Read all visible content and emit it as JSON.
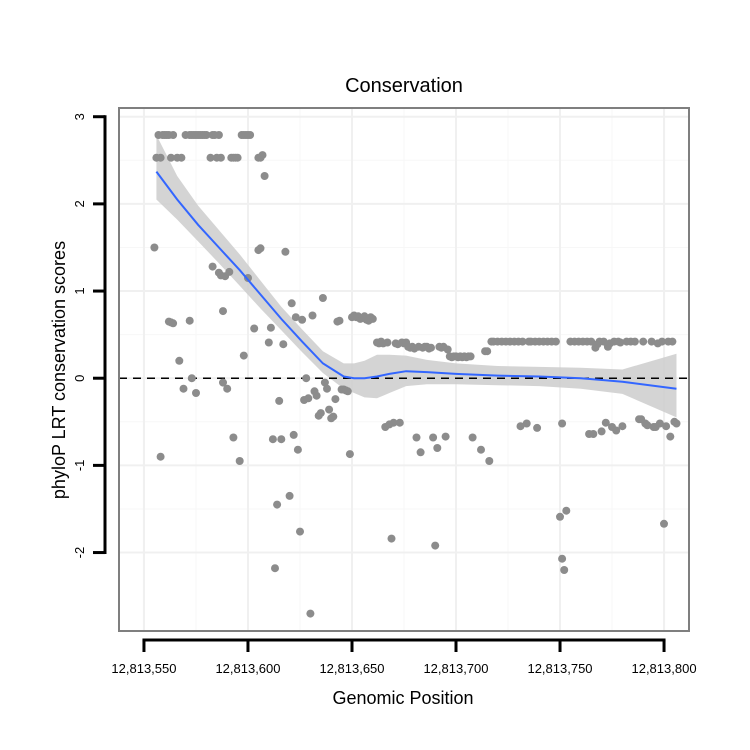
{
  "chart_data": {
    "type": "scatter",
    "title": "Conservation",
    "xlabel": "Genomic Position",
    "ylabel": "phyloP LRT conservation scores",
    "xlim": [
      12813538,
      12813812
    ],
    "ylim": [
      -2.9,
      3.1
    ],
    "x_ticks": [
      12813550,
      12813600,
      12813650,
      12813700,
      12813750,
      12813800
    ],
    "x_tick_labels": [
      "12,813,550",
      "12,813,600",
      "12,813,650",
      "12,813,700",
      "12,813,750",
      "12,813,800"
    ],
    "y_ticks": [
      -2,
      -1,
      0,
      1,
      2,
      3
    ],
    "y_tick_labels": [
      "-2",
      "-1",
      "0",
      "1",
      "2",
      "3"
    ],
    "reference_line": {
      "y": 0,
      "style": "dashed",
      "color": "#000000"
    },
    "point_color": "#8c8c8c",
    "smooth_color": "#3366ff",
    "band_color": "#cccccc",
    "points": [
      [
        12813556,
        2.53
      ],
      [
        12813557,
        2.79
      ],
      [
        12813558,
        2.53
      ],
      [
        12813559,
        2.79
      ],
      [
        12813560,
        2.79
      ],
      [
        12813561,
        2.79
      ],
      [
        12813562,
        2.79
      ],
      [
        12813563,
        2.53
      ],
      [
        12813564,
        2.79
      ],
      [
        12813566,
        2.53
      ],
      [
        12813568,
        2.53
      ],
      [
        12813570,
        2.79
      ],
      [
        12813572,
        2.79
      ],
      [
        12813573,
        2.79
      ],
      [
        12813574,
        2.79
      ],
      [
        12813575,
        2.79
      ],
      [
        12813576,
        2.79
      ],
      [
        12813577,
        2.79
      ],
      [
        12813578,
        2.79
      ],
      [
        12813579,
        2.79
      ],
      [
        12813580,
        2.79
      ],
      [
        12813582,
        2.53
      ],
      [
        12813583,
        2.79
      ],
      [
        12813584,
        2.79
      ],
      [
        12813585,
        2.53
      ],
      [
        12813586,
        2.79
      ],
      [
        12813587,
        2.53
      ],
      [
        12813592,
        2.53
      ],
      [
        12813593,
        2.53
      ],
      [
        12813594,
        2.53
      ],
      [
        12813595,
        2.53
      ],
      [
        12813597,
        2.79
      ],
      [
        12813598,
        2.79
      ],
      [
        12813599,
        2.79
      ],
      [
        12813600,
        2.79
      ],
      [
        12813601,
        2.79
      ],
      [
        12813605,
        2.53
      ],
      [
        12813606,
        2.53
      ],
      [
        12813607,
        2.56
      ],
      [
        12813608,
        2.32
      ],
      [
        12813555,
        1.5
      ],
      [
        12813558,
        -0.9
      ],
      [
        12813562,
        0.65
      ],
      [
        12813563,
        0.64
      ],
      [
        12813564,
        0.63
      ],
      [
        12813567,
        0.2
      ],
      [
        12813569,
        -0.12
      ],
      [
        12813572,
        0.66
      ],
      [
        12813573,
        0.0
      ],
      [
        12813575,
        -0.17
      ],
      [
        12813583,
        1.28
      ],
      [
        12813586,
        1.21
      ],
      [
        12813587,
        1.18
      ],
      [
        12813588,
        0.77
      ],
      [
        12813588,
        -0.05
      ],
      [
        12813589,
        1.17
      ],
      [
        12813590,
        -0.12
      ],
      [
        12813591,
        1.22
      ],
      [
        12813593,
        -0.68
      ],
      [
        12813596,
        -0.95
      ],
      [
        12813598,
        0.26
      ],
      [
        12813600,
        1.15
      ],
      [
        12813603,
        0.57
      ],
      [
        12813605,
        1.47
      ],
      [
        12813606,
        1.49
      ],
      [
        12813610,
        0.41
      ],
      [
        12813611,
        0.58
      ],
      [
        12813612,
        -0.7
      ],
      [
        12813613,
        -2.18
      ],
      [
        12813614,
        -1.45
      ],
      [
        12813615,
        -0.26
      ],
      [
        12813616,
        -0.7
      ],
      [
        12813617,
        0.39
      ],
      [
        12813618,
        1.45
      ],
      [
        12813620,
        -1.35
      ],
      [
        12813621,
        0.86
      ],
      [
        12813622,
        -0.65
      ],
      [
        12813623,
        0.7
      ],
      [
        12813624,
        -0.82
      ],
      [
        12813625,
        -1.76
      ],
      [
        12813626,
        0.67
      ],
      [
        12813627,
        -0.25
      ],
      [
        12813628,
        0.0
      ],
      [
        12813629,
        -0.23
      ],
      [
        12813630,
        -2.7
      ],
      [
        12813631,
        0.72
      ],
      [
        12813632,
        -0.15
      ],
      [
        12813633,
        -0.2
      ],
      [
        12813634,
        -0.43
      ],
      [
        12813635,
        -0.4
      ],
      [
        12813636,
        0.92
      ],
      [
        12813637,
        -0.05
      ],
      [
        12813638,
        -0.12
      ],
      [
        12813639,
        -0.36
      ],
      [
        12813640,
        -0.46
      ],
      [
        12813641,
        -0.44
      ],
      [
        12813642,
        -0.24
      ],
      [
        12813643,
        0.65
      ],
      [
        12813644,
        0.66
      ],
      [
        12813645,
        -0.13
      ],
      [
        12813646,
        -0.13
      ],
      [
        12813647,
        -0.14
      ],
      [
        12813648,
        -0.15
      ],
      [
        12813649,
        -0.87
      ],
      [
        12813650,
        0.7
      ],
      [
        12813651,
        0.72
      ],
      [
        12813652,
        0.7
      ],
      [
        12813653,
        0.71
      ],
      [
        12813654,
        0.68
      ],
      [
        12813655,
        0.69
      ],
      [
        12813656,
        0.71
      ],
      [
        12813657,
        0.67
      ],
      [
        12813658,
        0.66
      ],
      [
        12813659,
        0.7
      ],
      [
        12813660,
        0.68
      ],
      [
        12813662,
        0.41
      ],
      [
        12813663,
        0.4
      ],
      [
        12813664,
        0.42
      ],
      [
        12813665,
        0.4
      ],
      [
        12813666,
        -0.56
      ],
      [
        12813667,
        0.41
      ],
      [
        12813668,
        -0.53
      ],
      [
        12813669,
        -1.84
      ],
      [
        12813670,
        -0.51
      ],
      [
        12813671,
        0.4
      ],
      [
        12813672,
        0.39
      ],
      [
        12813673,
        -0.51
      ],
      [
        12813674,
        0.41
      ],
      [
        12813675,
        0.4
      ],
      [
        12813676,
        0.41
      ],
      [
        12813677,
        0.36
      ],
      [
        12813678,
        0.35
      ],
      [
        12813679,
        0.36
      ],
      [
        12813680,
        0.34
      ],
      [
        12813681,
        -0.68
      ],
      [
        12813682,
        0.36
      ],
      [
        12813683,
        -0.85
      ],
      [
        12813684,
        0.35
      ],
      [
        12813685,
        0.36
      ],
      [
        12813686,
        0.36
      ],
      [
        12813687,
        0.34
      ],
      [
        12813688,
        0.35
      ],
      [
        12813689,
        -0.68
      ],
      [
        12813690,
        -1.92
      ],
      [
        12813691,
        -0.8
      ],
      [
        12813692,
        0.36
      ],
      [
        12813693,
        0.35
      ],
      [
        12813694,
        0.36
      ],
      [
        12813695,
        -0.67
      ],
      [
        12813696,
        0.33
      ],
      [
        12813697,
        0.25
      ],
      [
        12813698,
        0.24
      ],
      [
        12813699,
        0.25
      ],
      [
        12813700,
        0.25
      ],
      [
        12813701,
        0.24
      ],
      [
        12813702,
        0.25
      ],
      [
        12813703,
        0.24
      ],
      [
        12813704,
        0.25
      ],
      [
        12813705,
        0.24
      ],
      [
        12813706,
        0.25
      ],
      [
        12813707,
        0.25
      ],
      [
        12813708,
        -0.68
      ],
      [
        12813712,
        -0.82
      ],
      [
        12813714,
        0.31
      ],
      [
        12813715,
        0.31
      ],
      [
        12813716,
        -0.95
      ],
      [
        12813717,
        0.42
      ],
      [
        12813718,
        0.42
      ],
      [
        12813720,
        0.42
      ],
      [
        12813722,
        0.42
      ],
      [
        12813724,
        0.42
      ],
      [
        12813726,
        0.42
      ],
      [
        12813728,
        0.42
      ],
      [
        12813730,
        0.42
      ],
      [
        12813731,
        -0.55
      ],
      [
        12813732,
        0.42
      ],
      [
        12813734,
        -0.52
      ],
      [
        12813735,
        0.42
      ],
      [
        12813736,
        0.42
      ],
      [
        12813738,
        0.42
      ],
      [
        12813739,
        -0.57
      ],
      [
        12813740,
        0.42
      ],
      [
        12813742,
        0.42
      ],
      [
        12813744,
        0.42
      ],
      [
        12813746,
        0.42
      ],
      [
        12813748,
        0.42
      ],
      [
        12813750,
        -1.59
      ],
      [
        12813751,
        -2.07
      ],
      [
        12813751,
        -0.52
      ],
      [
        12813752,
        -2.2
      ],
      [
        12813753,
        -1.52
      ],
      [
        12813755,
        0.42
      ],
      [
        12813757,
        0.42
      ],
      [
        12813759,
        0.42
      ],
      [
        12813761,
        0.42
      ],
      [
        12813763,
        0.42
      ],
      [
        12813764,
        -0.64
      ],
      [
        12813765,
        0.42
      ],
      [
        12813766,
        -0.64
      ],
      [
        12813767,
        0.35
      ],
      [
        12813768,
        0.39
      ],
      [
        12813769,
        0.42
      ],
      [
        12813770,
        -0.61
      ],
      [
        12813771,
        0.42
      ],
      [
        12813772,
        -0.51
      ],
      [
        12813773,
        0.36
      ],
      [
        12813774,
        0.4
      ],
      [
        12813775,
        -0.56
      ],
      [
        12813776,
        0.42
      ],
      [
        12813777,
        -0.6
      ],
      [
        12813778,
        0.42
      ],
      [
        12813779,
        0.41
      ],
      [
        12813780,
        -0.55
      ],
      [
        12813782,
        0.42
      ],
      [
        12813784,
        0.42
      ],
      [
        12813786,
        0.42
      ],
      [
        12813788,
        -0.47
      ],
      [
        12813789,
        -0.47
      ],
      [
        12813790,
        0.42
      ],
      [
        12813791,
        -0.52
      ],
      [
        12813792,
        -0.54
      ],
      [
        12813794,
        0.42
      ],
      [
        12813795,
        -0.56
      ],
      [
        12813796,
        -0.56
      ],
      [
        12813797,
        0.4
      ],
      [
        12813798,
        -0.52
      ],
      [
        12813799,
        0.42
      ],
      [
        12813800,
        -1.67
      ],
      [
        12813801,
        -0.55
      ],
      [
        12813802,
        0.42
      ],
      [
        12813803,
        -0.67
      ],
      [
        12813804,
        0.42
      ],
      [
        12813805,
        -0.5
      ],
      [
        12813806,
        -0.52
      ]
    ],
    "smooth": {
      "x": [
        12813556,
        12813566,
        12813576,
        12813586,
        12813596,
        12813606,
        12813616,
        12813626,
        12813636,
        12813646,
        12813651,
        12813656,
        12813662,
        12813668,
        12813676,
        12813686,
        12813700,
        12813720,
        12813740,
        12813760,
        12813780,
        12813806
      ],
      "y": [
        2.37,
        2.05,
        1.76,
        1.5,
        1.24,
        0.96,
        0.68,
        0.42,
        0.17,
        0.02,
        0.0,
        0.0,
        0.02,
        0.05,
        0.08,
        0.07,
        0.05,
        0.03,
        0.02,
        0.0,
        -0.04,
        -0.12
      ],
      "lower": [
        2.05,
        1.82,
        1.57,
        1.32,
        1.06,
        0.8,
        0.55,
        0.3,
        0.06,
        -0.12,
        -0.17,
        -0.22,
        -0.23,
        -0.17,
        -0.09,
        -0.07,
        -0.07,
        -0.08,
        -0.09,
        -0.12,
        -0.18,
        -0.45
      ],
      "upper": [
        2.79,
        2.32,
        1.98,
        1.7,
        1.42,
        1.12,
        0.82,
        0.56,
        0.31,
        0.17,
        0.17,
        0.2,
        0.27,
        0.27,
        0.26,
        0.21,
        0.17,
        0.14,
        0.13,
        0.12,
        0.1,
        0.28
      ]
    }
  }
}
